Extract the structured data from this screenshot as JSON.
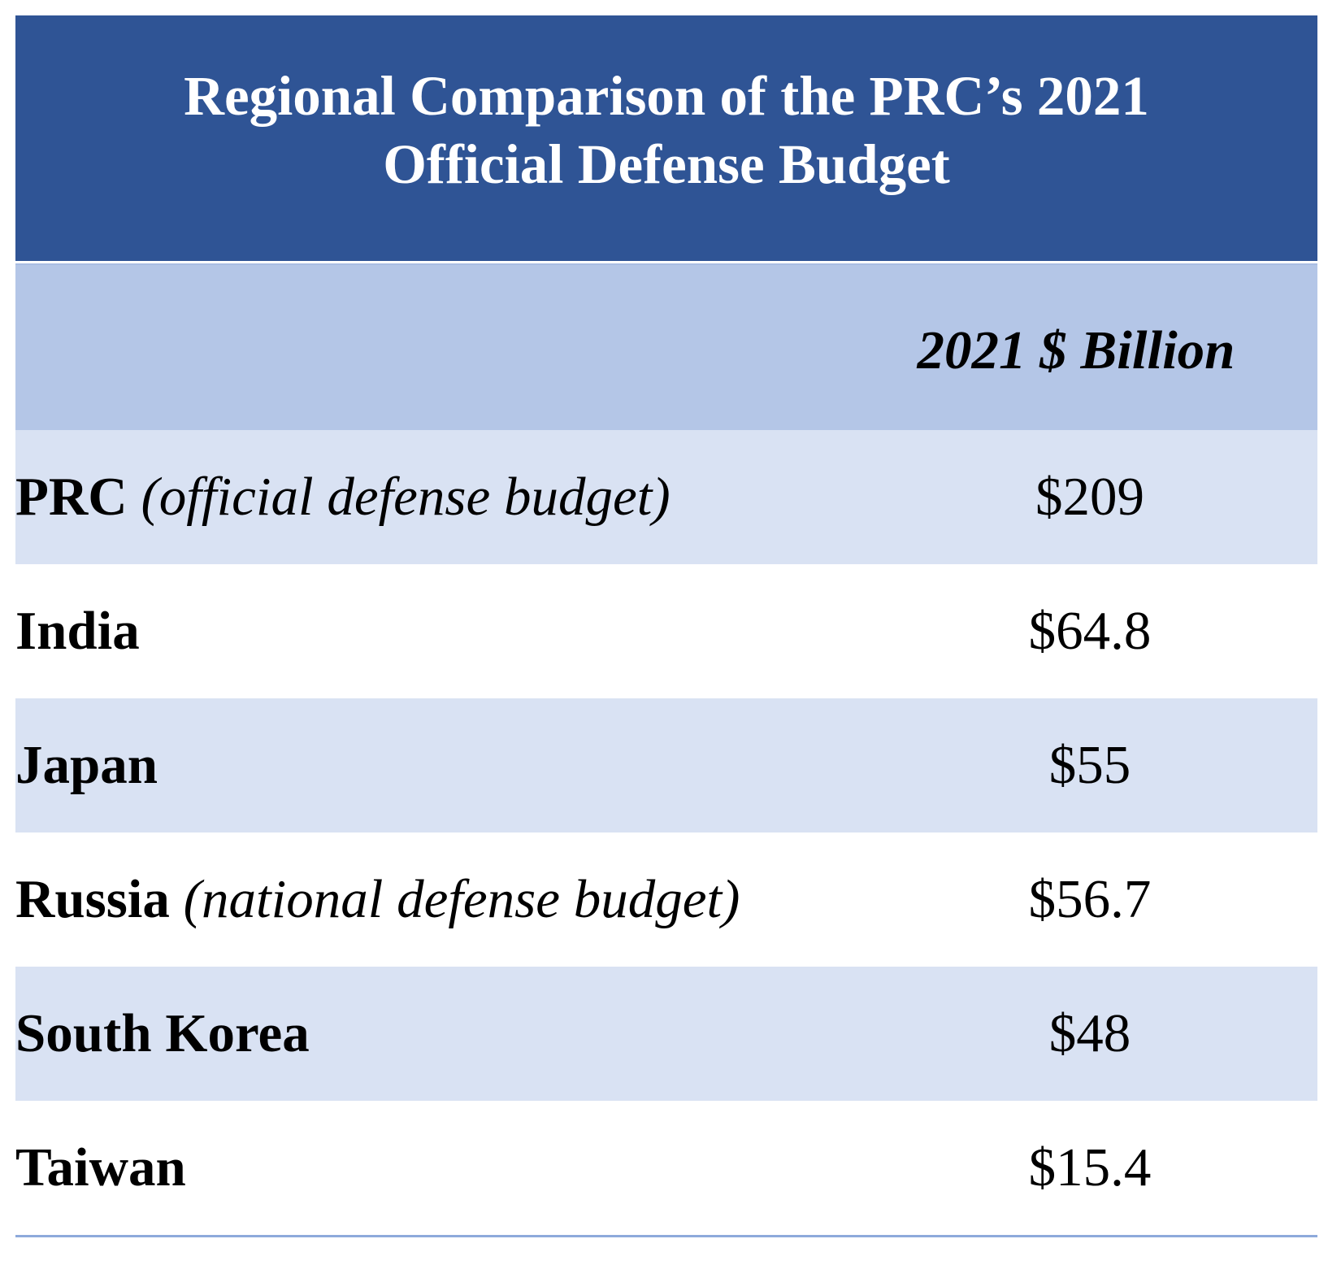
{
  "title": {
    "line1": "Regional Comparison of the PRC’s 2021",
    "line2": "Official Defense Budget"
  },
  "header": {
    "value_column": "2021 $ Billion"
  },
  "rows": [
    {
      "name": "PRC",
      "note": "(official defense budget)",
      "value": "$209"
    },
    {
      "name": "India",
      "note": "",
      "value": "$64.8"
    },
    {
      "name": "Japan",
      "note": "",
      "value": "$55"
    },
    {
      "name": "Russia",
      "note": "(national defense budget)",
      "value": "$56.7"
    },
    {
      "name": "South Korea",
      "note": "",
      "value": "$48"
    },
    {
      "name": "Taiwan",
      "note": "",
      "value": "$15.4"
    }
  ],
  "colors": {
    "title_bg": "#2f5495",
    "header_bg": "#b4c6e7",
    "shaded_row_bg": "#d9e2f3",
    "rule": "#8eaadb"
  }
}
